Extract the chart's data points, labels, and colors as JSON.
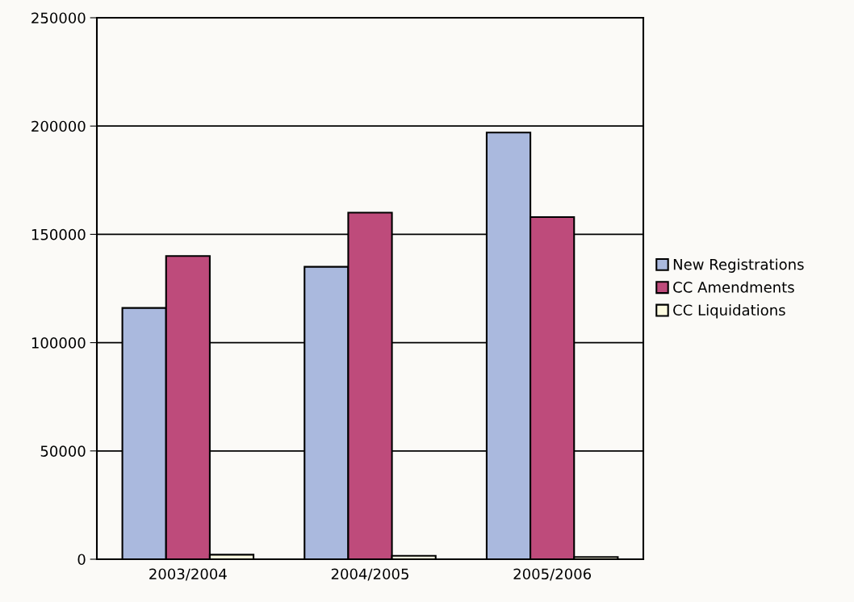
{
  "chart_data": {
    "type": "bar",
    "categories": [
      "2003/2004",
      "2004/2005",
      "2005/2006"
    ],
    "series": [
      {
        "name": "New Registrations",
        "color": "#aab9de",
        "values": [
          116000,
          135000,
          197000
        ]
      },
      {
        "name": "CC Amendments",
        "color": "#be4b7b",
        "values": [
          140000,
          160000,
          158000
        ]
      },
      {
        "name": "CC Liquidations",
        "color": "#fdfbe0",
        "values": [
          2100,
          1600,
          1000
        ]
      }
    ],
    "ylim": [
      0,
      250000
    ],
    "yticks": [
      0,
      50000,
      100000,
      150000,
      200000,
      250000
    ],
    "grid": "y",
    "legend": "right"
  }
}
